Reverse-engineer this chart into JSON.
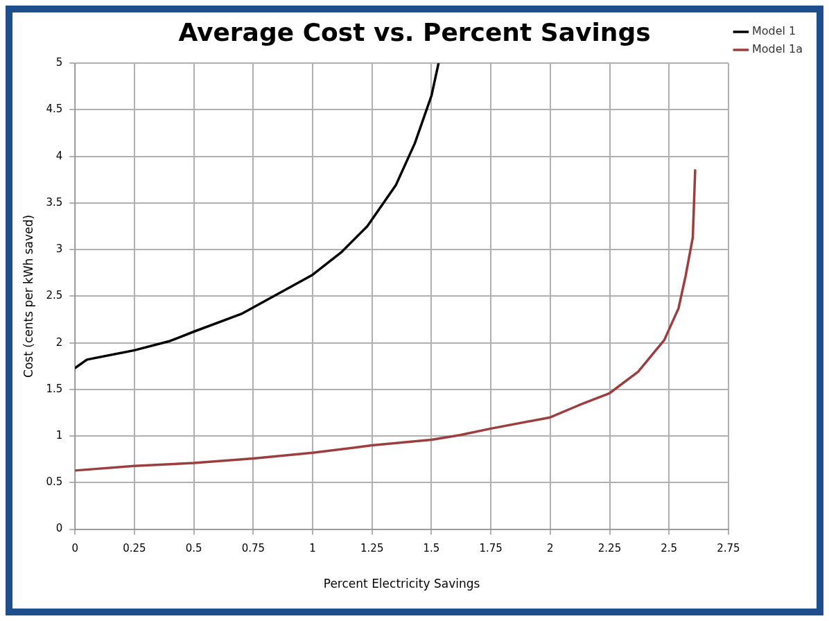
{
  "chart_data": {
    "type": "line",
    "title": "Average Cost vs. Percent Savings",
    "xlabel": "Percent Electricity Savings",
    "ylabel": "Cost (cents per kWh saved)",
    "series": [
      {
        "name": "Model 1",
        "color": "#000000",
        "x": [
          0,
          0.05,
          0.25,
          0.4,
          0.5,
          0.7,
          0.85,
          1.0,
          1.12,
          1.23,
          1.35,
          1.43,
          1.5,
          1.53
        ],
        "values": [
          1.73,
          1.82,
          1.92,
          2.02,
          2.12,
          2.31,
          2.52,
          2.73,
          2.97,
          3.25,
          3.69,
          4.14,
          4.65,
          5.0
        ]
      },
      {
        "name": "Model 1a",
        "color": "#9c3e3e",
        "x": [
          0,
          0.25,
          0.5,
          0.75,
          1.0,
          1.25,
          1.5,
          1.62,
          1.75,
          2.0,
          2.12,
          2.25,
          2.37,
          2.48,
          2.54,
          2.57,
          2.6,
          2.61
        ],
        "values": [
          0.63,
          0.68,
          0.71,
          0.76,
          0.82,
          0.9,
          0.96,
          1.01,
          1.08,
          1.2,
          1.33,
          1.46,
          1.69,
          2.03,
          2.37,
          2.72,
          3.13,
          3.85
        ]
      }
    ],
    "xlim": [
      0,
      2.75
    ],
    "xticks": [
      0,
      0.25,
      0.5,
      0.75,
      1,
      1.25,
      1.5,
      1.75,
      2,
      2.25,
      2.5,
      2.75
    ],
    "ylim": [
      0,
      5
    ],
    "yticks": [
      0,
      0.5,
      1,
      1.5,
      2,
      2.5,
      3,
      3.5,
      4,
      4.5,
      5
    ],
    "grid": true,
    "legend": "top right",
    "marker": "none",
    "line_style": "solid"
  }
}
